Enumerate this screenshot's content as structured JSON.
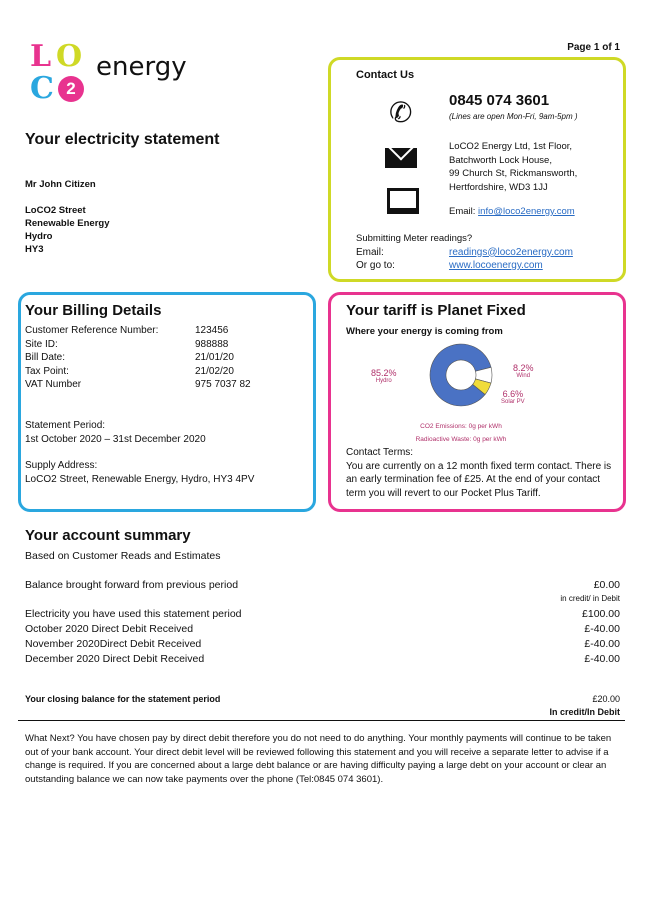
{
  "logo": {
    "letters": [
      "L",
      "O",
      "C",
      "2"
    ],
    "word": "energy"
  },
  "page": "Page 1 of 1",
  "title": "Your electricity statement",
  "customer": {
    "name": "Mr John Citizen",
    "address": [
      "LoCO2 Street",
      "Renewable Energy",
      "Hydro",
      "HY3"
    ]
  },
  "contact": {
    "heading": "Contact Us",
    "phone": "0845 074 3601",
    "hours": "(Lines are open Mon-Fri, 9am-5pm )",
    "postal": [
      "LoCO2 Energy Ltd, 1st Floor,",
      "Batchworth Lock House,",
      "99 Church St, Rickmansworth,",
      "Hertfordshire, WD3 1JJ"
    ],
    "email_label": "Email:",
    "email": "info@loco2energy.com",
    "meter_heading": "Submitting Meter readings?",
    "meter_email_label": "Email:",
    "meter_email": "readings@loco2energy.com",
    "goto_label": "Or go to:",
    "website": "www.locoenergy.com"
  },
  "billing": {
    "heading": "Your Billing Details",
    "fields": [
      {
        "label": "Customer Reference Number:",
        "value": "123456"
      },
      {
        "label": "Site ID:",
        "value": "988888"
      },
      {
        "label": "Bill Date:",
        "value": "21/01/20"
      },
      {
        "label": "Tax Point:",
        "value": "21/02/20"
      },
      {
        "label": "VAT Number",
        "value": "975 7037 82"
      }
    ],
    "period_label": "Statement Period:",
    "period": "1st October 2020 – 31st December 2020",
    "supply_label": "Supply Address:",
    "supply": "LoCO2 Street, Renewable Energy, Hydro, HY3 4PV"
  },
  "tariff": {
    "heading": "Your tariff is Planet Fixed",
    "subheading": "Where your energy is coming from",
    "chart_data": {
      "type": "pie",
      "donut": true,
      "slices": [
        {
          "label": "Hydro",
          "value": 85.2,
          "display": "85.2%",
          "color": "#4a72c4"
        },
        {
          "label": "Wind",
          "value": 8.2,
          "display": "8.2%",
          "color": "#ffffff"
        },
        {
          "label": "Solar PV",
          "value": 6.6,
          "display": "6.6%",
          "color": "#f0dc3a"
        }
      ]
    },
    "co2": "CO2 Emissions: 0g per kWh",
    "waste": "Radioactive Waste: 0g per kWh",
    "terms_label": "Contact Terms:",
    "terms": "You are currently on a 12 month fixed term contact. There is an early termination fee of £25. At the end of your contact term you will revert to our Pocket Plus Tariff."
  },
  "summary": {
    "heading": "Your account summary",
    "sub": "Based on Customer Reads and Estimates",
    "bf_label": "Balance brought forward from previous period",
    "bf_value": "£0.00",
    "bf_note": "in credit/ in Debit",
    "rows": [
      {
        "label": "Electricity you have used this statement period",
        "value": "£100.00"
      },
      {
        "label": "October 2020 Direct Debit Received",
        "value": "£-40.00"
      },
      {
        "label": "November 2020Direct Debit Received",
        "value": "£-40.00"
      },
      {
        "label": "December 2020 Direct Debit Received",
        "value": "£-40.00"
      }
    ],
    "closing_label": "Your closing balance for the statement period",
    "closing_value": "£20.00",
    "closing_note": "In credit/In Debit"
  },
  "footer": "What Next? You have chosen pay by direct debit therefore you do not need to do anything. Your monthly payments will continue to be taken out of your bank account. Your direct debit level will be reviewed following this statement and you will receive a separate letter to advise if a change is required. If you are concerned about a large debt balance or are having difficulty paying a large debt on your account or clear an outstanding balance we can now take payments over the phone (Tel:0845 074 3601)."
}
